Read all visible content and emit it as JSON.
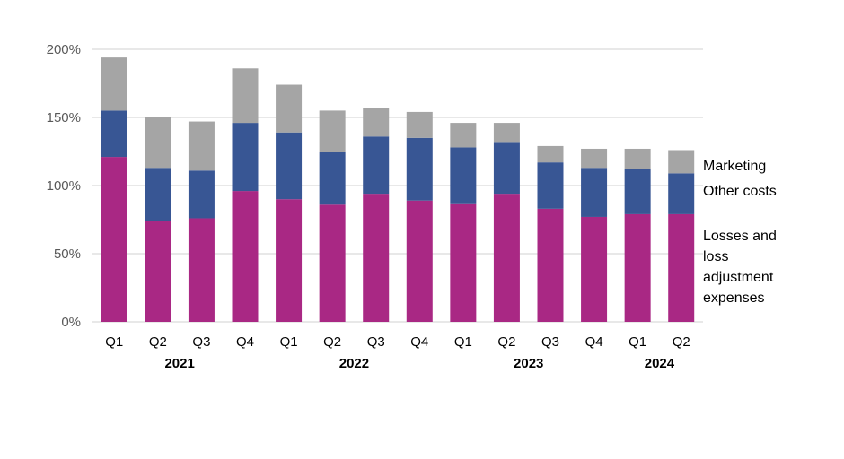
{
  "chart_data": {
    "type": "bar",
    "stacked": true,
    "title": "",
    "xlabel": "",
    "ylabel": "",
    "ylim": [
      0,
      200
    ],
    "yticks": [
      "0%",
      "50%",
      "100%",
      "150%",
      "200%"
    ],
    "grid": true,
    "legend_placement": "right",
    "categories": [
      "Q1",
      "Q2",
      "Q3",
      "Q4",
      "Q1",
      "Q2",
      "Q3",
      "Q4",
      "Q1",
      "Q2",
      "Q3",
      "Q4",
      "Q1",
      "Q2"
    ],
    "year_groups": [
      {
        "label": "2021",
        "start": 0,
        "end": 3
      },
      {
        "label": "2022",
        "start": 4,
        "end": 7
      },
      {
        "label": "2023",
        "start": 8,
        "end": 11
      },
      {
        "label": "2024",
        "start": 12,
        "end": 13
      }
    ],
    "series": [
      {
        "name": "Losses and loss adjustment expenses",
        "legend_lines": [
          "Losses and",
          "loss",
          "adjustment",
          "expenses"
        ],
        "color": "#A92884",
        "values": [
          121,
          74,
          76,
          96,
          90,
          86,
          94,
          89,
          87,
          94,
          83,
          77,
          79,
          79
        ]
      },
      {
        "name": "Other costs",
        "legend_lines": [
          "Other costs"
        ],
        "color": "#385694",
        "values": [
          34,
          39,
          35,
          50,
          49,
          39,
          42,
          46,
          41,
          38,
          34,
          36,
          33,
          30
        ]
      },
      {
        "name": "Marketing",
        "legend_lines": [
          "Marketing"
        ],
        "color": "#A5A5A5",
        "values": [
          39,
          37,
          36,
          40,
          35,
          30,
          21,
          19,
          18,
          14,
          12,
          14,
          15,
          17
        ]
      }
    ]
  }
}
